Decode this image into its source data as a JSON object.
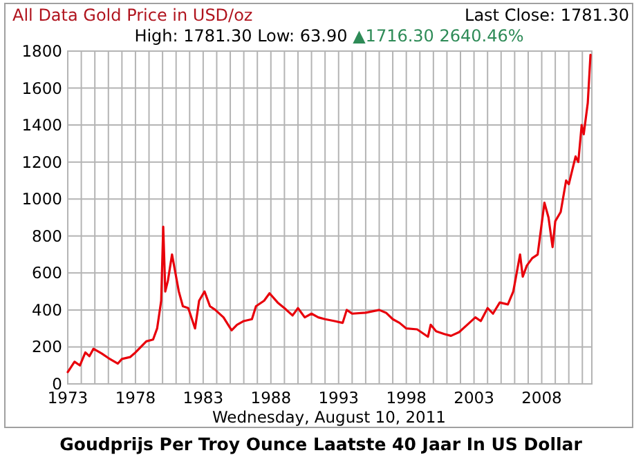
{
  "chart_data": {
    "type": "line",
    "title": "All Data Gold Price in USD/oz",
    "xlabel": "Wednesday, August 10, 2011",
    "annotations": [
      "Last Close: 1781.30",
      "High: 1781.30 Low: 63.90",
      "▲1716.30 2640.46%",
      "Goudprijs Per Troy Ounce Laatste 40 Jaar In US Dollar"
    ],
    "grid": true,
    "xlim": [
      1973,
      2011.7
    ],
    "ylim": [
      0,
      1800
    ],
    "xticks": [
      1973,
      {
        "value": 1974,
        "label": null
      },
      {
        "value": 1975,
        "label": null
      },
      {
        "value": 1976,
        "label": null
      },
      {
        "value": 1977,
        "label": null
      },
      1978,
      {
        "value": 1979,
        "label": null
      },
      {
        "value": 1980,
        "label": null
      },
      {
        "value": 1981,
        "label": null
      },
      {
        "value": 1982,
        "label": null
      },
      1983,
      {
        "value": 1984,
        "label": null
      },
      {
        "value": 1985,
        "label": null
      },
      {
        "value": 1986,
        "label": null
      },
      {
        "value": 1987,
        "label": null
      },
      1988,
      {
        "value": 1989,
        "label": null
      },
      {
        "value": 1990,
        "label": null
      },
      {
        "value": 1991,
        "label": null
      },
      {
        "value": 1992,
        "label": null
      },
      1993,
      {
        "value": 1994,
        "label": null
      },
      {
        "value": 1995,
        "label": null
      },
      {
        "value": 1996,
        "label": null
      },
      {
        "value": 1997,
        "label": null
      },
      1998,
      {
        "value": 1999,
        "label": null
      },
      {
        "value": 2000,
        "label": null
      },
      {
        "value": 2001,
        "label": null
      },
      {
        "value": 2002,
        "label": null
      },
      2003,
      {
        "value": 2004,
        "label": null
      },
      {
        "value": 2005,
        "label": null
      },
      {
        "value": 2006,
        "label": null
      },
      {
        "value": 2007,
        "label": null
      },
      2008,
      {
        "value": 2009,
        "label": null
      },
      {
        "value": 2010,
        "label": null
      },
      {
        "value": 2011,
        "label": null
      }
    ],
    "yticks": [
      0,
      200,
      400,
      600,
      800,
      1000,
      1200,
      1400,
      1600,
      1800
    ],
    "series": [
      {
        "color": "#e8000b",
        "x": [
          1973.0,
          1973.5,
          1973.9,
          1974.3,
          1974.6,
          1974.9,
          1975.5,
          1976.0,
          1976.7,
          1977.0,
          1977.6,
          1978.0,
          1978.8,
          1979.3,
          1979.6,
          1979.9,
          1980.05,
          1980.2,
          1980.4,
          1980.7,
          1980.9,
          1981.2,
          1981.5,
          1981.9,
          1982.4,
          1982.7,
          1983.1,
          1983.5,
          1983.9,
          1984.5,
          1985.1,
          1985.5,
          1986.0,
          1986.6,
          1986.9,
          1987.5,
          1987.9,
          1988.5,
          1989.0,
          1989.6,
          1990.0,
          1990.5,
          1991.0,
          1991.5,
          1992.0,
          1992.7,
          1993.3,
          1993.6,
          1994.0,
          1995.0,
          1996.0,
          1996.5,
          1997.0,
          1997.5,
          1998.0,
          1998.8,
          1999.6,
          1999.8,
          2000.2,
          2000.8,
          2001.3,
          2001.9,
          2002.5,
          2003.1,
          2003.5,
          2004.0,
          2004.4,
          2004.9,
          2005.5,
          2005.9,
          2006.4,
          2006.6,
          2006.9,
          2007.3,
          2007.7,
          2008.2,
          2008.5,
          2008.8,
          2009.0,
          2009.4,
          2009.8,
          2010.0,
          2010.5,
          2010.7,
          2010.95,
          2011.1,
          2011.4,
          2011.6
        ],
        "values": [
          64,
          120,
          100,
          170,
          150,
          190,
          165,
          140,
          110,
          135,
          145,
          170,
          230,
          240,
          300,
          450,
          850,
          500,
          560,
          700,
          620,
          500,
          420,
          410,
          300,
          450,
          500,
          420,
          400,
          360,
          290,
          320,
          340,
          350,
          420,
          450,
          490,
          440,
          410,
          370,
          410,
          360,
          380,
          360,
          350,
          340,
          330,
          400,
          380,
          385,
          400,
          385,
          350,
          330,
          300,
          295,
          255,
          320,
          285,
          270,
          260,
          280,
          320,
          360,
          340,
          410,
          380,
          440,
          430,
          500,
          700,
          580,
          640,
          680,
          700,
          980,
          900,
          740,
          880,
          930,
          1100,
          1080,
          1230,
          1200,
          1400,
          1350,
          1520,
          1780
        ]
      }
    ]
  }
}
